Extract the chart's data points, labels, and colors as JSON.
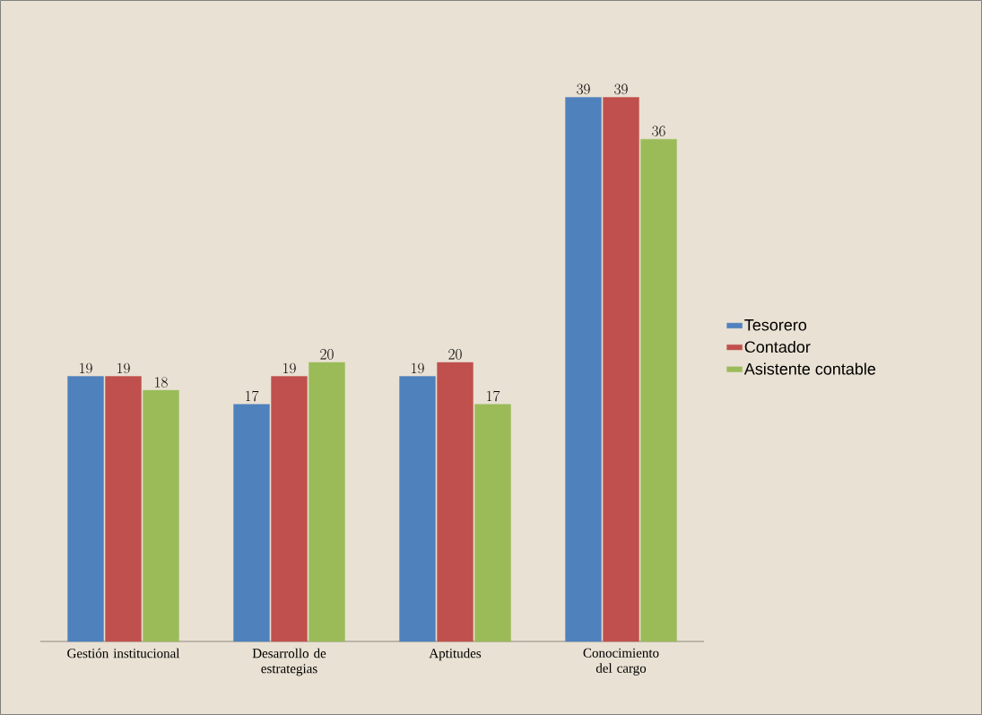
{
  "chart_data": {
    "type": "bar",
    "categories": [
      "Gestión institucional",
      "Desarrollo de estrategias",
      "Aptitudes",
      "Conocimiento del cargo"
    ],
    "series": [
      {
        "name": "Tesorero",
        "color": "#4f81bd",
        "values": [
          19,
          17,
          19,
          39
        ]
      },
      {
        "name": "Contador",
        "color": "#c0504d",
        "values": [
          19,
          19,
          20,
          39
        ]
      },
      {
        "name": "Asistente contable",
        "color": "#9bbb59",
        "values": [
          18,
          20,
          17,
          36
        ]
      }
    ],
    "data_labels": true,
    "legend": "right"
  }
}
